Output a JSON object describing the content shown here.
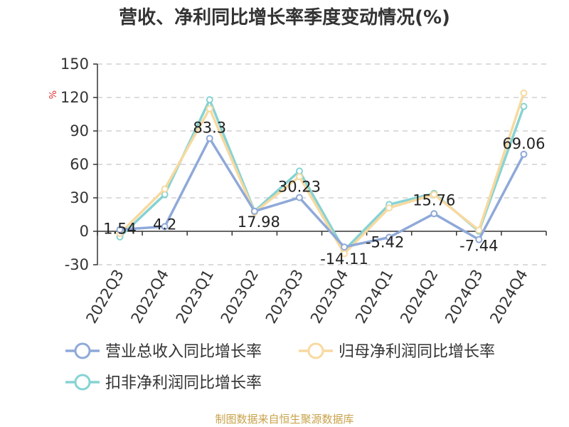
{
  "chart_data": {
    "type": "line",
    "title": "营收、净利同比增长率季度变动情况(%)",
    "ylabel": "%",
    "categories": [
      "2022Q3",
      "2022Q4",
      "2023Q1",
      "2023Q2",
      "2023Q3",
      "2023Q4",
      "2024Q1",
      "2024Q2",
      "2024Q3",
      "2024Q4"
    ],
    "ylim": [
      -30,
      150
    ],
    "yticks": [
      -30,
      0,
      30,
      60,
      90,
      120,
      150
    ],
    "grid": true,
    "legend_position": "bottom",
    "series": [
      {
        "name": "营业总收入同比增长率",
        "color": "#8fa9d8",
        "values": [
          1.54,
          4.2,
          83.3,
          17.98,
          30.23,
          -14.11,
          -5.42,
          15.76,
          -7.44,
          69.06
        ],
        "labels": [
          "1.54",
          "4.2",
          "83.3",
          "17.98",
          "30.23",
          "-14.11",
          "-5.42",
          "15.76",
          "-7.44",
          "69.06"
        ]
      },
      {
        "name": "归母净利润同比增长率",
        "color": "#f8d9a0",
        "values": [
          -2,
          38,
          110,
          17,
          49,
          -20,
          21,
          33,
          1,
          124
        ]
      },
      {
        "name": "扣非净利润同比增长率",
        "color": "#86d3d3",
        "values": [
          -5,
          33,
          118,
          18,
          54,
          -17,
          24,
          34,
          0,
          112
        ]
      }
    ],
    "source": "制图数据来自恒生聚源数据库"
  }
}
